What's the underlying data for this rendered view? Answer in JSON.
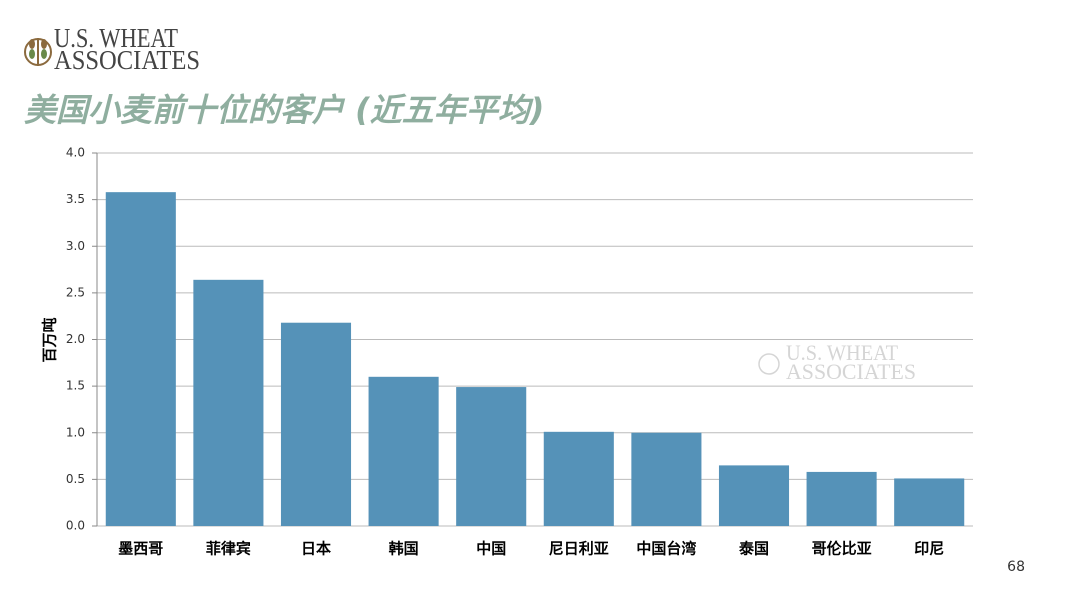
{
  "logo": {
    "line1": "U.S. WHEAT",
    "line2": "ASSOCIATES"
  },
  "page_number": "68",
  "chart_data": {
    "type": "bar",
    "title": "美国小麦前十位的客户 (近五年平均)",
    "y_label": "百万吨",
    "categories": [
      "墨西哥",
      "菲律宾",
      "日本",
      "韩国",
      "中国",
      "尼日利亚",
      "中国台湾",
      "泰国",
      "哥伦比亚",
      "印尼"
    ],
    "values": [
      3.58,
      2.64,
      2.18,
      1.6,
      1.49,
      1.01,
      1.0,
      0.65,
      0.58,
      0.51
    ],
    "color": "#5592b8",
    "ylim": [
      0,
      4
    ],
    "yticks": [
      {
        "value": 0,
        "label": "0.0"
      },
      {
        "value": 0.5,
        "label": "0.5"
      },
      {
        "value": 1,
        "label": "1.0"
      },
      {
        "value": 1.5,
        "label": "1.5"
      },
      {
        "value": 2,
        "label": "2.0"
      },
      {
        "value": 2.5,
        "label": "2.5"
      },
      {
        "value": 3,
        "label": "3.0"
      },
      {
        "value": 3.5,
        "label": "3.5"
      },
      {
        "value": 4,
        "label": "4.0"
      }
    ],
    "grid": true
  }
}
